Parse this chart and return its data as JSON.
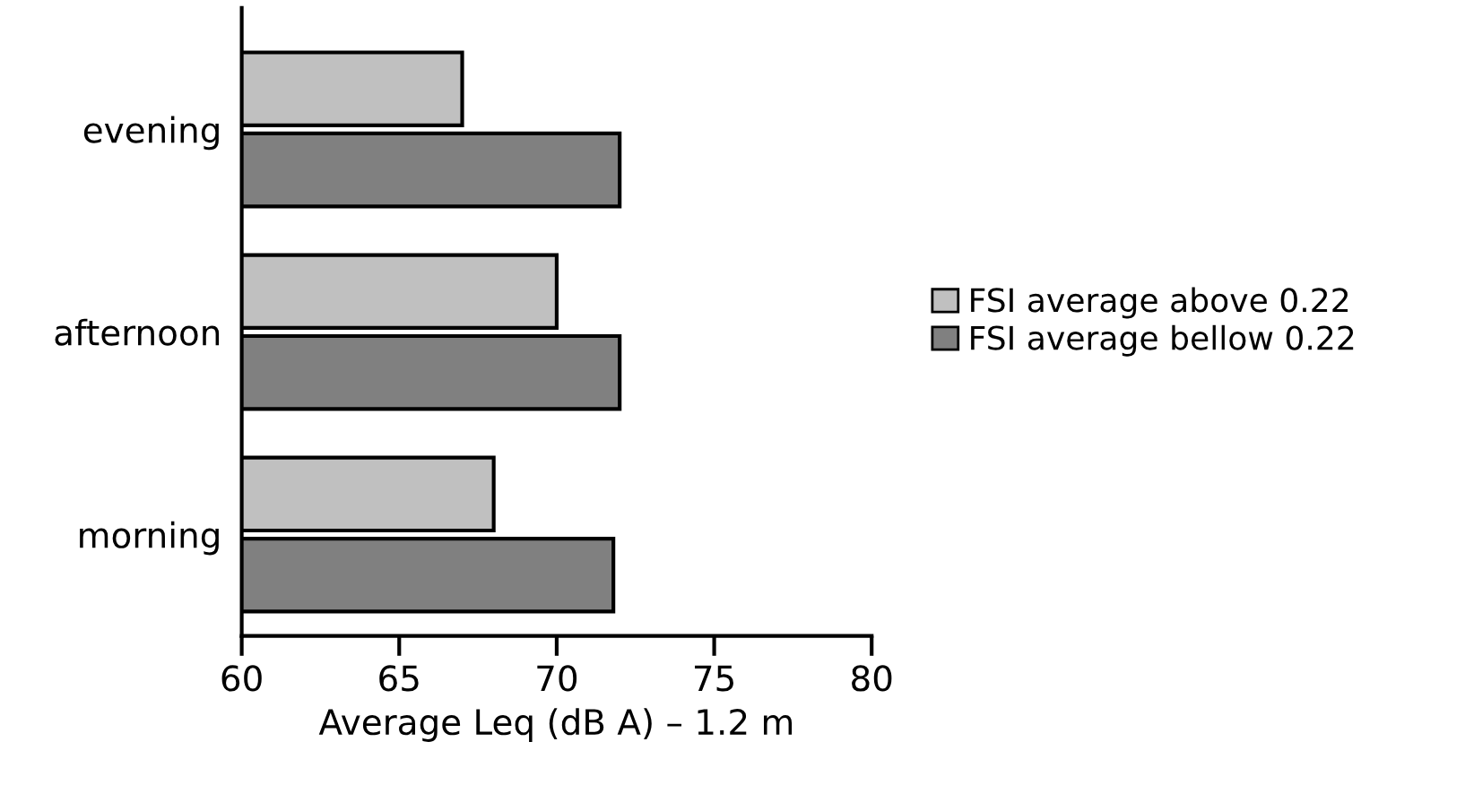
{
  "chart_data": {
    "type": "bar",
    "orientation": "horizontal",
    "xlabel": "Average Leq (dB A) – 1.2 m",
    "categories": [
      "evening",
      "afternoon",
      "morning"
    ],
    "series": [
      {
        "name": "FSI average above 0.22",
        "color": "#c0c0c0",
        "values": [
          67,
          70,
          68
        ]
      },
      {
        "name": "FSI average bellow 0.22",
        "color": "#808080",
        "values": [
          72,
          72,
          71.8
        ]
      }
    ],
    "xlim": [
      60,
      80
    ],
    "xticks": [
      60,
      65,
      70,
      75,
      80
    ],
    "grid": false,
    "legend": "right"
  }
}
